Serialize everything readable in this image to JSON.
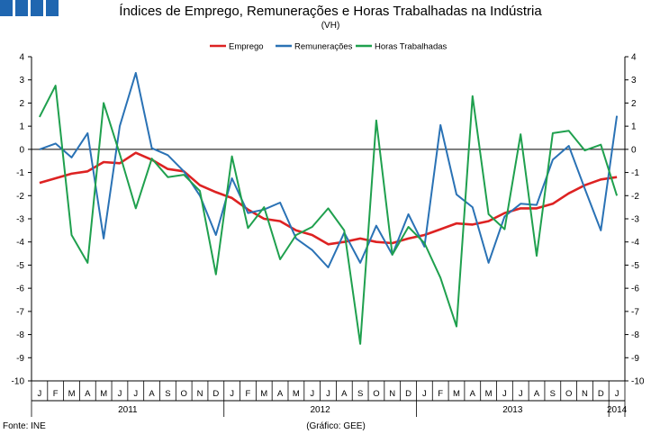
{
  "colors": {
    "logo": "#1f66b0",
    "emprego": "#dd2222",
    "remuneracoes": "#2a72b5",
    "horas": "#1fa04e",
    "axis": "#000000"
  },
  "source": "Fonte: INE",
  "credit": "(Gráfico: GEE)",
  "chart_data": {
    "type": "line",
    "title": "Índices de Emprego, Remunerações e Horas Trabalhadas na Indústria",
    "subtitle": "(VH)",
    "legend_position": "top",
    "ylim": [
      -10,
      4
    ],
    "yticks": [
      "4",
      "3",
      "2",
      "1",
      "0",
      "-1",
      "-2",
      "-3",
      "-4",
      "-5",
      "-6",
      "-7",
      "-8",
      "-9",
      "-10"
    ],
    "categories": [
      "J",
      "F",
      "M",
      "A",
      "M",
      "J",
      "J",
      "A",
      "S",
      "O",
      "N",
      "D",
      "J",
      "F",
      "M",
      "A",
      "M",
      "J",
      "J",
      "A",
      "S",
      "O",
      "N",
      "D",
      "J",
      "F",
      "M",
      "A",
      "M",
      "J",
      "J",
      "A",
      "S",
      "O",
      "N",
      "D",
      "J"
    ],
    "years": [
      {
        "label": "2011",
        "start": 0,
        "end": 11
      },
      {
        "label": "2012",
        "start": 12,
        "end": 23
      },
      {
        "label": "2013",
        "start": 24,
        "end": 35
      },
      {
        "label": "2014",
        "start": 36,
        "end": 36
      }
    ],
    "series": [
      {
        "name": "Emprego",
        "color": "#dd2222",
        "values": [
          -1.45,
          -1.25,
          -1.05,
          -0.95,
          -0.55,
          -0.6,
          -0.15,
          -0.45,
          -0.85,
          -0.95,
          -1.55,
          -1.85,
          -2.1,
          -2.6,
          -3.0,
          -3.1,
          -3.5,
          -3.7,
          -4.1,
          -4.0,
          -3.85,
          -4.0,
          -4.05,
          -3.85,
          -3.7,
          -3.45,
          -3.2,
          -3.25,
          -3.1,
          -2.75,
          -2.55,
          -2.55,
          -2.35,
          -1.9,
          -1.55,
          -1.3,
          -1.2
        ]
      },
      {
        "name": "Remunerações",
        "color": "#2a72b5",
        "values": [
          0.0,
          0.25,
          -0.35,
          0.7,
          -3.85,
          1.0,
          3.3,
          0.05,
          -0.25,
          -0.95,
          -2.0,
          -3.7,
          -1.25,
          -2.75,
          -2.6,
          -2.3,
          -3.85,
          -4.35,
          -5.1,
          -3.6,
          -4.9,
          -3.3,
          -4.55,
          -2.8,
          -4.2,
          1.05,
          -1.95,
          -2.5,
          -4.9,
          -2.9,
          -2.35,
          -2.4,
          -0.45,
          0.15,
          -1.7,
          -3.5,
          1.45
        ]
      },
      {
        "name": "Horas Trabalhadas",
        "color": "#1fa04e",
        "values": [
          1.4,
          2.75,
          -3.7,
          -4.9,
          2.0,
          -0.2,
          -2.55,
          -0.4,
          -1.2,
          -1.1,
          -1.8,
          -5.4,
          -0.3,
          -3.4,
          -2.5,
          -4.75,
          -3.7,
          -3.35,
          -2.55,
          -3.5,
          -8.4,
          1.25,
          -4.55,
          -3.35,
          -4.05,
          -5.55,
          -7.65,
          2.3,
          -2.8,
          -3.45,
          0.65,
          -4.6,
          0.7,
          0.8,
          -0.05,
          0.2,
          -2.0
        ]
      }
    ]
  }
}
